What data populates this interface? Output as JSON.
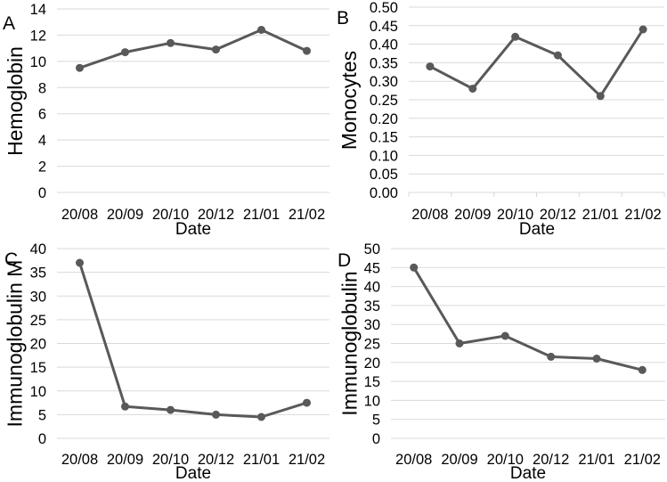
{
  "style": {
    "background": "#ffffff",
    "line_color": "#595959",
    "marker_color": "#595959",
    "gridline_color": "#d9d9d9",
    "text_color": "#000000"
  },
  "chart_data": [
    {
      "type": "line",
      "panel_label": "A",
      "title": "",
      "ylabel": "Hemoglobin",
      "xlabel": "Date",
      "categories": [
        "20/08",
        "20/09",
        "20/10",
        "20/12",
        "21/01",
        "21/02"
      ],
      "values": [
        9.5,
        10.7,
        11.4,
        10.9,
        12.4,
        10.8
      ],
      "ylim": [
        0,
        14
      ],
      "ytick_step": 2,
      "ytick_decimals": 0,
      "grid": true,
      "legend": "none",
      "marker": "circle",
      "x_axis_tick_marks": false
    },
    {
      "type": "line",
      "panel_label": "B",
      "title": "",
      "ylabel": "Monocytes",
      "xlabel": "Date",
      "categories": [
        "20/08",
        "20/09",
        "20/10",
        "20/12",
        "21/01",
        "21/02"
      ],
      "values": [
        0.34,
        0.28,
        0.42,
        0.37,
        0.26,
        0.44
      ],
      "ylim": [
        0,
        0.5
      ],
      "ytick_step": 0.05,
      "ytick_decimals": 2,
      "grid": true,
      "legend": "none",
      "marker": "circle",
      "x_axis_tick_marks": true
    },
    {
      "type": "line",
      "panel_label": "C",
      "title": "",
      "ylabel": "Immunoglobulin M",
      "xlabel": "Date",
      "categories": [
        "20/08",
        "20/09",
        "20/10",
        "20/12",
        "21/01",
        "21/02"
      ],
      "values": [
        37,
        6.7,
        6,
        5,
        4.5,
        7.5
      ],
      "ylim": [
        0,
        40
      ],
      "ytick_step": 5,
      "ytick_decimals": 0,
      "grid": true,
      "legend": "none",
      "marker": "circle",
      "x_axis_tick_marks": false
    },
    {
      "type": "line",
      "panel_label": "D",
      "title": "",
      "ylabel": "Immunoglobulin",
      "xlabel": "Date",
      "categories": [
        "20/08",
        "20/09",
        "20/10",
        "20/12",
        "21/01",
        "21/02"
      ],
      "values": [
        45,
        25,
        27,
        21.5,
        21,
        18
      ],
      "ylim": [
        0,
        50
      ],
      "ytick_step": 5,
      "ytick_decimals": 0,
      "grid": true,
      "legend": "none",
      "marker": "circle",
      "x_axis_tick_marks": false
    }
  ]
}
